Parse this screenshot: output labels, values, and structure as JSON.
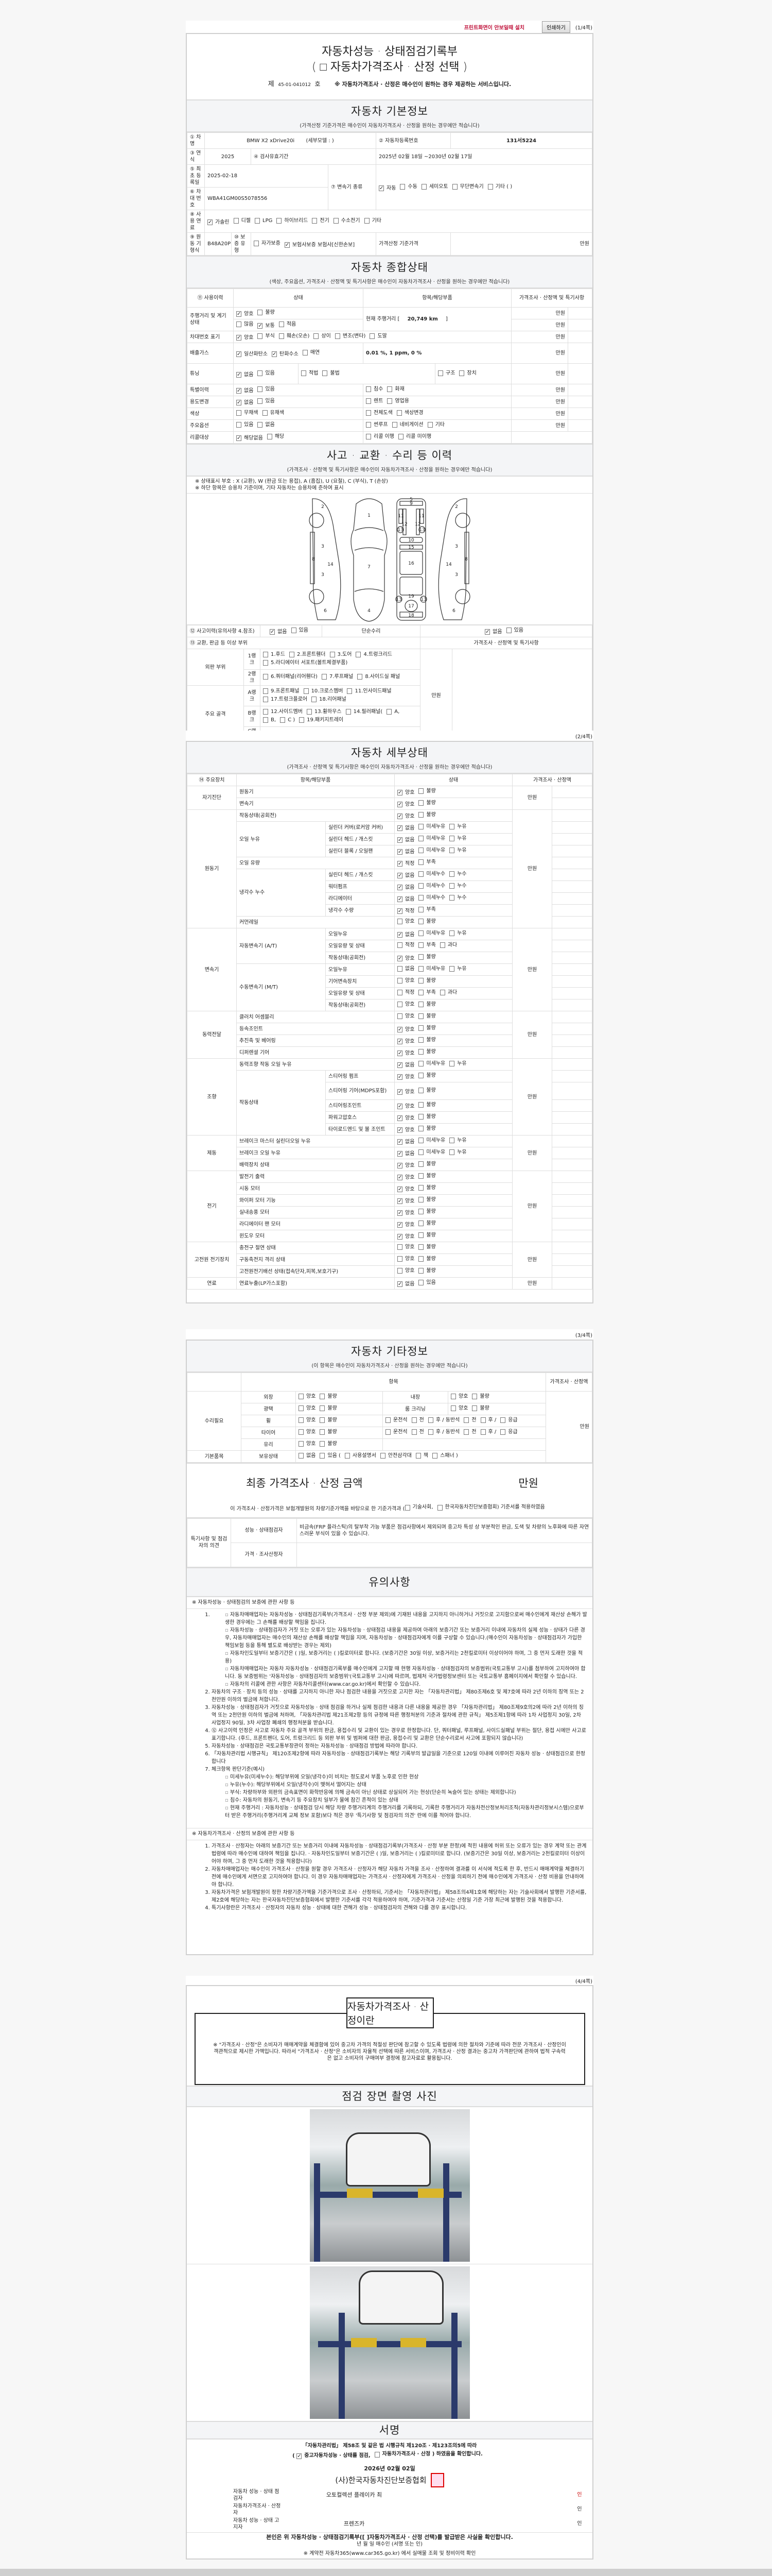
{
  "toolbar": {
    "install_link": "프린트화면이 안보일때 설치",
    "print_button": "인쇄하기",
    "page1": "(1/4쪽)",
    "page2": "(2/4쪽)",
    "page3": "(3/4쪽)",
    "page4": "(4/4쪽)"
  },
  "title": {
    "main": "자동차성능 · 상태점검기록부",
    "sub": "( □ 자동차가격조사 · 산정 선택 )",
    "no_prefix": "제",
    "no": "45-01-041012",
    "no_suffix": "호",
    "notice": "※ 자동차가격조사 · 산정은 매수인이 원하는 경우 제공하는 서비스입니다."
  },
  "basic": {
    "title": "자동차 기본정보",
    "sub": "(가격산정 기준가격은 매수인이 자동차가격조사 · 산정을 원하는 경우에만 적습니다)",
    "name_label": "① 차명",
    "name": "BMW X2 xDrive20i",
    "detail_model": "(세부모델 :                    )",
    "reg_label": "② 자동차등록번호",
    "reg": "131서5224",
    "year_label": "③ 연식",
    "year": "2025",
    "valid_label": "④ 검사유효기간",
    "valid": "2025년 02월 18일 ~2030년 02월 17일",
    "first_reg_label": "⑤ 최초 등록일",
    "first_reg": "2025-02-18",
    "trans_label": "⑦ 변속기 종류",
    "trans": {
      "options": [
        "자동",
        "수동",
        "세미오토",
        "무단변속기",
        "기타 (                )"
      ],
      "checked": [
        0
      ]
    },
    "vin_label": "⑥ 차대 번호",
    "vin": "WBA41GM00S5078556",
    "fuel_label": "⑧ 사용 연료",
    "fuel": {
      "options": [
        "가솔린",
        "디젤",
        "LPG",
        "하이브리드",
        "전기",
        "수소전기",
        "기타"
      ],
      "checked": [
        0
      ]
    },
    "engine_label": "⑨ 원동 기형식",
    "engine": "B48A20P",
    "warranty_label": "⑩ 보증 유형",
    "warranty": {
      "options": [
        "자가보증",
        "보험사보증 보험사[신한손보]"
      ],
      "checked": [
        1
      ]
    },
    "base_price_label": "가격산정 기준가격",
    "base_price_unit": "만원"
  },
  "overview": {
    "title": "자동차 종합상태",
    "sub": "(색상, 주요옵션, 가격조사 · 산정액 및 특기사항은 매수인이 자동차가격조사 · 산정을 원하는 경우에만 적습니다)",
    "h_history": "⑪ 사용이력",
    "h_state": "상태",
    "h_item": "항목/해당부품",
    "h_price": "가격조사 · 산정액 및 특기사항",
    "unit": "만원",
    "mileage_label": "주행거리 및 계기상태",
    "mileage_s1": {
      "options": [
        "양호",
        "불량"
      ],
      "checked": [
        0
      ]
    },
    "mileage_s2": {
      "options": [
        "많음",
        "보통",
        "적음"
      ],
      "checked": [
        1
      ]
    },
    "mileage_text_pre": "현재 주행거리 [",
    "mileage": "20,749 km",
    "mileage_text_post": "]",
    "vin_label": "차대번호 표기",
    "vin_s": {
      "options": [
        "양호",
        "부식",
        "훼손(오손)",
        "상이",
        "변조(변타)",
        "도말"
      ],
      "checked": [
        0
      ]
    },
    "emission_label": "배출가스",
    "emission_s": {
      "options": [
        "일산화탄소",
        "탄화수소",
        "매연"
      ],
      "checked": [
        0,
        1
      ]
    },
    "emission_values": "0.01 %,   1  ppm,   0  %",
    "tuning_label": "튜닝",
    "tuning_s": {
      "options": [
        "없음",
        "있음"
      ],
      "checked": [
        0
      ]
    },
    "tuning_i1": {
      "options": [
        "적법",
        "불법"
      ],
      "checked": []
    },
    "tuning_i2": {
      "options": [
        "구조",
        "장치"
      ],
      "checked": []
    },
    "special_label": "특별이력",
    "special_s": {
      "options": [
        "없음",
        "있음"
      ],
      "checked": [
        0
      ]
    },
    "special_i": {
      "options": [
        "침수",
        "화재"
      ],
      "checked": []
    },
    "usage_label": "용도변경",
    "usage_s": {
      "options": [
        "없음",
        "있음"
      ],
      "checked": [
        0
      ]
    },
    "usage_i": {
      "options": [
        "렌트",
        "영업용"
      ],
      "checked": []
    },
    "color_label": "색상",
    "color_s": {
      "options": [
        "무채색",
        "유채색"
      ],
      "checked": []
    },
    "color_i": {
      "options": [
        "전체도색",
        "색상변경"
      ],
      "checked": []
    },
    "option_label": "주요옵션",
    "option_s": {
      "options": [
        "있음",
        "없음"
      ],
      "checked": []
    },
    "option_i": {
      "options": [
        "썬루프",
        "네비게이션",
        "기타"
      ],
      "checked": []
    },
    "recall_label": "리콜대상",
    "recall_s": {
      "options": [
        "해당없음",
        "해당"
      ],
      "checked": [
        0
      ]
    },
    "recall_i": {
      "options": [
        "리콜 이행",
        "리콜 미이행"
      ],
      "checked": []
    }
  },
  "accident": {
    "title": "사고 · 교환 · 수리 등 이력",
    "sub": "(가격조사 · 산정액 및 특기사항은 매수인이 자동차가격조사 · 산정을 원하는 경우에만 적습니다)",
    "legend1": "※ 상태표시 부호 : X (교환), W (판금 또는 용접), A (흠집), U (요철), C (부식), T (손상)",
    "legend2": "※ 하단 항목은 승용차 기준이며, 기타 자동차는 승용차에 준하여 표시",
    "diagram_labels": [
      "1",
      "2",
      "3",
      "4",
      "5",
      "6",
      "7",
      "8",
      "9",
      "10",
      "11",
      "12",
      "13",
      "14",
      "15",
      "16",
      "17",
      "18",
      "19"
    ],
    "history_label": "⑫ 사고이력(유의사항 4.참조)",
    "history": {
      "options": [
        "없음",
        "있음"
      ],
      "checked": [
        0
      ]
    },
    "simple_label": "단순수리",
    "simple": {
      "options": [
        "없음",
        "있음"
      ],
      "checked": [
        0
      ]
    },
    "parts_label": "⑬ 교환, 판금 등 이상 부위",
    "price_label": "가격조사 · 산정액 및 특기사항",
    "unit": "만원",
    "outer_label": "외판 부위",
    "frame_label": "주요 골격",
    "rank1": "1랭크",
    "rank1_o": {
      "options": [
        "1.후드",
        "2.프론트휀더",
        "3.도어",
        "4.트렁크리드",
        "5.라디에이터 서포트(볼트체결부품)"
      ],
      "checked": []
    },
    "rank2": "2랭크",
    "rank2_o": {
      "options": [
        "6.쿼터패널(리어휀다)",
        "7.루프패널",
        "8.사이드실 패널"
      ],
      "checked": []
    },
    "rankA": "A랭크",
    "rankA_o": {
      "options": [
        "9.프론트패널",
        "10.크로스멤버",
        "11.인사이드패널",
        "17.트렁크플로어",
        "18.리어패널"
      ],
      "checked": []
    },
    "rankB": "B랭크",
    "rankB_o": {
      "options": [
        "12.사이드멤버",
        "13.휠하우스",
        "14.필러패널(",
        "A,",
        "B,",
        "C )",
        "19.패키지트레이"
      ],
      "checked": []
    },
    "rankC": "C랭크",
    "rankC_o": {
      "options": [
        "15.대쉬패널",
        "16.플로어패널"
      ],
      "checked": []
    }
  },
  "detail": {
    "title": "자동차 세부상태",
    "sub": "(가격조사 · 산정액 및 특기사항은 매수인이 자동차가격조사 · 산정을 원하는 경우에만 적습니다)",
    "h_device": "⑭ 주요장치",
    "h_item": "항목/해당부품",
    "h_state": "상태",
    "h_price": "가격조사 · 산정액",
    "unit": "만원",
    "rows": [
      {
        "g": "자기진단",
        "i": "원동기",
        "s": null,
        "o": [
          "양호",
          "불량"
        ],
        "c": [
          0
        ]
      },
      {
        "g": "자기진단",
        "i": "변속기",
        "s": null,
        "o": [
          "양호",
          "불량"
        ],
        "c": [
          0
        ]
      },
      {
        "g": "원동기",
        "i": "작동상태(공회전)",
        "s": null,
        "o": [
          "양호",
          "불량"
        ],
        "c": [
          0
        ]
      },
      {
        "g": "원동기",
        "i": "오일 누유",
        "s": "실린더 커버(로커암 커버)",
        "o": [
          "없음",
          "미세누유",
          "누유"
        ],
        "c": [
          0
        ]
      },
      {
        "g": "원동기",
        "i": "오일 누유",
        "s": "실린더 헤드 / 개스킷",
        "o": [
          "없음",
          "미세누유",
          "누유"
        ],
        "c": [
          0
        ]
      },
      {
        "g": "원동기",
        "i": "오일 누유",
        "s": "실린더 블록 / 오일팬",
        "o": [
          "없음",
          "미세누유",
          "누유"
        ],
        "c": [
          0
        ]
      },
      {
        "g": "원동기",
        "i": "오일 유량",
        "s": null,
        "o": [
          "적정",
          "부족"
        ],
        "c": [
          0
        ]
      },
      {
        "g": "원동기",
        "i": "냉각수 누수",
        "s": "실린더 헤드 / 개스킷",
        "o": [
          "없음",
          "미세누수",
          "누수"
        ],
        "c": [
          0
        ]
      },
      {
        "g": "원동기",
        "i": "냉각수 누수",
        "s": "워터펌프",
        "o": [
          "없음",
          "미세누수",
          "누수"
        ],
        "c": [
          0
        ]
      },
      {
        "g": "원동기",
        "i": "냉각수 누수",
        "s": "라디에이터",
        "o": [
          "없음",
          "미세누수",
          "누수"
        ],
        "c": [
          0
        ]
      },
      {
        "g": "원동기",
        "i": "냉각수 누수",
        "s": "냉각수 수량",
        "o": [
          "적정",
          "부족"
        ],
        "c": [
          0
        ]
      },
      {
        "g": "원동기",
        "i": "커먼레일",
        "s": null,
        "o": [
          "양호",
          "불량"
        ],
        "c": []
      },
      {
        "g": "변속기",
        "i": "자동변속기 (A/T)",
        "s": "오일누유",
        "o": [
          "없음",
          "미세누유",
          "누유"
        ],
        "c": [
          0
        ]
      },
      {
        "g": "변속기",
        "i": "자동변속기 (A/T)",
        "s": "오일유량 및 상태",
        "o": [
          "적정",
          "부족",
          "과다"
        ],
        "c": []
      },
      {
        "g": "변속기",
        "i": "자동변속기 (A/T)",
        "s": "작동상태(공회전)",
        "o": [
          "양호",
          "불량"
        ],
        "c": [
          0
        ]
      },
      {
        "g": "변속기",
        "i": "수동변속기 (M/T)",
        "s": "오일누유",
        "o": [
          "없음",
          "미세누유",
          "누유"
        ],
        "c": []
      },
      {
        "g": "변속기",
        "i": "수동변속기 (M/T)",
        "s": "기어변속장치",
        "o": [
          "양호",
          "불량"
        ],
        "c": []
      },
      {
        "g": "변속기",
        "i": "수동변속기 (M/T)",
        "s": "오일유량 및 상태",
        "o": [
          "적정",
          "부족",
          "과다"
        ],
        "c": []
      },
      {
        "g": "변속기",
        "i": "수동변속기 (M/T)",
        "s": "작동상태(공회전)",
        "o": [
          "양호",
          "불량"
        ],
        "c": []
      },
      {
        "g": "동력전달",
        "i": "클러치 어셈블리",
        "s": null,
        "o": [
          "양호",
          "불량"
        ],
        "c": []
      },
      {
        "g": "동력전달",
        "i": "등속조인트",
        "s": null,
        "o": [
          "양호",
          "불량"
        ],
        "c": [
          0
        ]
      },
      {
        "g": "동력전달",
        "i": "추진축 및 베어링",
        "s": null,
        "o": [
          "양호",
          "불량"
        ],
        "c": [
          0
        ]
      },
      {
        "g": "동력전달",
        "i": "디퍼렌셜 기어",
        "s": null,
        "o": [
          "양호",
          "불량"
        ],
        "c": [
          0
        ]
      },
      {
        "g": "조향",
        "i": "동력조향 작동 오일 누유",
        "s": null,
        "o": [
          "없음",
          "미세누유",
          "누유"
        ],
        "c": [
          0
        ]
      },
      {
        "g": "조향",
        "i": "작동상태",
        "s": "스티어링 펌프",
        "o": [
          "양호",
          "불량"
        ],
        "c": [
          0
        ]
      },
      {
        "g": "조향",
        "i": "작동상태",
        "s": "스티어링 기어(MDPS포함)",
        "o": [
          "양호",
          "불량"
        ],
        "c": [
          0
        ]
      },
      {
        "g": "조향",
        "i": "작동상태",
        "s": "스티어링조인트",
        "o": [
          "양호",
          "불량"
        ],
        "c": [
          0
        ]
      },
      {
        "g": "조향",
        "i": "작동상태",
        "s": "파워고압호스",
        "o": [
          "양호",
          "불량"
        ],
        "c": [
          0
        ]
      },
      {
        "g": "조향",
        "i": "작동상태",
        "s": "타이로드엔드 및 볼 조인트",
        "o": [
          "양호",
          "불량"
        ],
        "c": [
          0
        ]
      },
      {
        "g": "제동",
        "i": "브레이크 마스터 실린더오일 누유",
        "s": null,
        "o": [
          "없음",
          "미세누유",
          "누유"
        ],
        "c": [
          0
        ]
      },
      {
        "g": "제동",
        "i": "브레이크 오일 누유",
        "s": null,
        "o": [
          "없음",
          "미세누유",
          "누유"
        ],
        "c": [
          0
        ]
      },
      {
        "g": "제동",
        "i": "배력장치 상태",
        "s": null,
        "o": [
          "양호",
          "불량"
        ],
        "c": [
          0
        ]
      },
      {
        "g": "전기",
        "i": "발전기 출력",
        "s": null,
        "o": [
          "양호",
          "불량"
        ],
        "c": [
          0
        ]
      },
      {
        "g": "전기",
        "i": "시동 모터",
        "s": null,
        "o": [
          "양호",
          "불량"
        ],
        "c": [
          0
        ]
      },
      {
        "g": "전기",
        "i": "와이퍼 모터 기능",
        "s": null,
        "o": [
          "양호",
          "불량"
        ],
        "c": [
          0
        ]
      },
      {
        "g": "전기",
        "i": "실내송풍 모터",
        "s": null,
        "o": [
          "양호",
          "불량"
        ],
        "c": [
          0
        ]
      },
      {
        "g": "전기",
        "i": "라디에이터 팬 모터",
        "s": null,
        "o": [
          "양호",
          "불량"
        ],
        "c": [
          0
        ]
      },
      {
        "g": "전기",
        "i": "윈도우 모터",
        "s": null,
        "o": [
          "양호",
          "불량"
        ],
        "c": [
          0
        ]
      },
      {
        "g": "고전원 전기장치",
        "i": "충전구 절연 상태",
        "s": null,
        "o": [
          "양호",
          "불량"
        ],
        "c": []
      },
      {
        "g": "고전원 전기장치",
        "i": "구동축전지 격리 상태",
        "s": null,
        "o": [
          "양호",
          "불량"
        ],
        "c": []
      },
      {
        "g": "고전원 전기장치",
        "i": "고전원전기배선 상태(접속단자,피복,보호기구)",
        "s": null,
        "o": [
          "양호",
          "불량"
        ],
        "c": []
      },
      {
        "g": "연료",
        "i": "연료누출(LP가스포함)",
        "s": null,
        "o": [
          "없음",
          "있음"
        ],
        "c": [
          0
        ]
      }
    ]
  },
  "other": {
    "title": "자동차 기타정보",
    "sub": "(이 항목은 매수인이 자동차가격조사 · 산정을 원하는 경우에만 적습니다)",
    "h_item": "항목",
    "h_price": "가격조사 · 산정액",
    "unit": "만원",
    "repair_label": "수리필요",
    "basic_label": "기본품목",
    "exterior": "외장",
    "interior": "내장",
    "gloss": "광택",
    "room": "룸 크리닝",
    "wheel": "휠",
    "tire": "타이어",
    "glass": "유리",
    "owned": "보유상태",
    "gb": {
      "options": [
        "양호",
        "불량"
      ],
      "checked": []
    },
    "seats": {
      "options": [
        "운전석",
        "전",
        "후 / 동반석",
        "전",
        "후 /",
        "응급"
      ],
      "checked": []
    },
    "owned_o": {
      "options": [
        "없음",
        "있음 (",
        "사용설명서",
        "안전삼각대",
        "잭",
        "스패너 )"
      ],
      "checked": []
    },
    "final_label": "최종 가격조사 · 산정 금액",
    "final_unit": "만원",
    "basis_pre": "이 가격조사 · 산정가격은 보험개발원의 차량기준가액을 바탕으로 한 기준가격과 (",
    "basis_o": {
      "options": [
        "기술사회,",
        "한국자동차진단보증협회) 기준서를 적용하였음"
      ],
      "checked": []
    },
    "opinion_label": "특기사항 및 점검자의 의견",
    "inspector_label": "성능 · 상태점검자",
    "inspector_opinion": "비금속(FRP 플라스틱)의 탈부착 가능 부품은 점검사항에서 제외되며 중고차 특성 상 부분적인 판금, 도색 및 차량의 노후화에 따른 자연스러운 부식이 있을 수 있습니다.",
    "appraiser_label": "가격 · 조사산정자"
  },
  "notes": {
    "title": "유의사항",
    "a_head": "※ 자동차성능 · 상태점검의 보증에 관한 사항 등",
    "a1": [
      "자동차매매업자는 자동차성능 · 상태점검기록부(가격조사 · 산정 부분 제외)에 기재된 내용을 고지하지 아니하거나 거짓으로 고지함으로써 매수인에게 재산상 손해가 발생한 경우에는 그 손해를 배상할 책임을 집니다.",
      "자동차성능 · 상태점검자가 거짓 또는 오류가 있는 자동차성능 · 상태점검 내용을 제공하여 아래의 보증기간 또는 보증거리 이내에 자동차의 실제 성능 · 상태가 다른 경우, 자동차매매업자는 매수인의 재산상 손해를 배상할 책임을 지며, 자동차성능 · 상태점검자에게 이를 구상할 수 있습니다.(매수인이 자동차성능 · 상태점검자가 가입한 책임보험 등을 통해 별도로 배상받는 경우는 제외)",
      "자동차인도일부터 보증기간은 (      )일, 보증거리는 (      )킬로미터로 합니다. (보증기간은 30일 이상, 보증거리는 2천킬로미터 이상이어야 하며, 그 중 먼저 도래한 것을 적용)",
      "자동차매매업자는 자동차 자동차성능 · 상태점검기록부를 매수인에게 고지할 때 현행 자동차성능 · 상태점검자의 보증범위(국토교통부 고시)를 첨부하여 고지하여야 합니다. 동 보증범위는 '자동차성능 · 상태점검자의 보증범위'(국토교통부 고시)에 따르며, 법제처 국가법령정보센터 또는 국토교통부 홈페이지에서 확인할 수 있습니다.",
      "자동차의 리콜에 관한 사항은 자동차리콜센터(www.car.go.kr)에서 확인할 수 있습니다."
    ],
    "a2": "자동차의 구조 · 장치 등의 성능 · 상태를 고지하지 아니한 자나 점검한 내용을 거짓으로 고지한 자는 「자동차관리법」 제80조제6호 및 제7호에 따라 2년 이하의 징역 또는 2천만원 이하의 벌금에 처합니다.",
    "a3": "자동차성능 · 상태점검자가 거짓으로 자동차성능 · 상태 점검을 하거나 실제 점검한 내용과 다른 내용을 제공한 경우 「자동차관리법」 제80조제9호의2에 따라 2년 이하의 징역 또는 2천만원 이하의 벌금에 처하며, 「자동차관리법 제21조제2항 등의 규정에 따른 행정처분의 기준과 절차에 관한 규칙」 제5조제1항에 따라 1차 사업정지 30일, 2차 사업정지 90일, 3차 사업장 폐쇄의 행정처분을 받습니다.",
    "a4": "⑫ 사고이력 인정은 사고로 자동차 주요 골격 부위의 판금, 용접수리 및 교환이 있는 경우로 한정합니다. 단, 쿼터패널, 루프패널, 사이드실패널 부위는 절단, 용접 시에만 사고로 표기합니다. (후드, 프론트펜더, 도어, 트렁크리드 등 외판 부위 및 범퍼에 대한 판금, 용접수리 및 교환은 단순수리로서 사고에 포함되지 않습니다)",
    "a5": "자동차성능 · 상태점검은 국토교통부장관이 정하는 자동차성능 · 상태점검 방법에 따라야 합니다.",
    "a6": "「자동차관리법 시행규칙」 제120조제2항에 따라 자동차성능 · 상태점검기록부는 해당 기록부의 발급일을 기준으로 120일 이내에 이루어진 자동차 성능 · 상태점검으로 한정합니다",
    "a7": "체크항목 판단기준(예시)",
    "a7_items": [
      "미세누유(미세누수): 해당부위에 오일(냉각수)이 비치는 정도로서 부품 노후로 인한 현상",
      "누유(누수): 해당부위에서 오일(냉각수)이 맺혀서 떨어지는 상태",
      "부식: 차량하부와 외판의 금속표면이 화학반응에 의해 금속이 아닌 상태로 상실되어 가는 현상(단순히 녹슬어 있는 상태는 제외합니다)",
      "침수: 자동차의 원동기, 변속기 등 주요장치 일부가 물에 잠긴 흔적이 있는 상태",
      "현재 주행거리 : 자동차성능 · 상태점검 당시 해당 차량 주행거리계의 주행거리를 기록하되, 기록한 주행거리가 자동차전산정보처리조직(자동차관리정보시스템)으로부터 받은 주행거리(주행거리계 교체 정보 포함)보다 적은 경우 '특기사항 및 점검자의 의견' 란에 이를 적어야 합니다."
    ],
    "b_head": "※ 자동차가격조사 · 산정의 보증에 관한 사항 등",
    "b": [
      "가격조사 · 산정자는 아래의 보증기간 또는 보증거리 이내에 자동차성능 · 상태점검기록부(가격조사 · 산정 부분 한정)에 적힌 내용에 허위 또는 오류가 있는 경우 계약 또는 관계법령에 따라 매수인에 대하여 책임을 집니다.  · 자동차인도일부터 보증기간은 (      )일, 보증거리는 (      )킬로미터로 합니다. (보증기간은 30일 이상, 보증거리는 2천킬로미터 이상이어야 하며, 그 중 먼저 도래한 것을 적용합니다)",
      "자동차매매업자는 매수인이 가격조사 · 산정을 원할 경우 가격조사 · 산정자가 해당 자동차 가격을 조사 · 산정하여 결과를 이 서식에 적도록 한 후, 반드시 매매계약을 체결하기 전에 매수인에게 서면으로 고지하여야 합니다. 이 경우 자동차매매업자는 가격조사 · 산정자에게 가격조사 · 산정을 의뢰하기 전에 매수인에게 가격조사 · 산정 비용을 안내하여야 합니다.",
      "자동차가격은 보험개발원이 정한 차량기준가액을 기준가격으로 조사 · 산정하되, 기준서는 「자동차관리법」 제58조의4제1호에 해당하는 자는 기술사회에서 발행한 기준서를, 제2호에 해당하는 자는 한국자동차진단보증협회에서 발행한 기준서를 각각 적용하여야 하며, 기준가격과 기준서는 산정일 기준 가장 최근에 발행된 것을 적용합니다.",
      "특기사항란은 가격조사 · 산정자의 자동차 성능 · 상태에 대한 견해가 성능 · 상태점검자의 견해와 다를 경우 표시합니다."
    ]
  },
  "appraisal": {
    "title": "자동차가격조사 · 산정이란",
    "body": "※ \"가격조사 · 산정\"은 소비자가 매매계약을 체결함에 있어 중고차 가격의 적절성 판단에 참고할 수 있도록 법령에 의한 절차와 기준에 따라 전문 가격조사 · 산정인이 객관적으로 제시한 가액입니다. 따라서 \"가격조사 · 산정\"은 소비자의 자율적 선택에 따른 서비스이며, 가격조사 · 산정 결과는 중고차 가격판단에 관하여 법적 구속력은 없고 소비자의 구매여부 결정에 참고자료로 활용됩니다."
  },
  "photos": {
    "title": "점검 장면 촬영 사진",
    "plate": "131서5224"
  },
  "sign": {
    "title": "서명",
    "law": "「자동차관리법」 제58조 및 같은 법 시행규칙 제120조 · 제123조의5에 따라",
    "confirm": {
      "options": [
        "중고자동차성능 · 상태를 점검,",
        "자동차가격조사 · 산정 ) 하였음을 확인합니다."
      ],
      "checked": [
        0
      ]
    },
    "date": "2026년 02월  02일",
    "org": "(사)한국자동차진단보증협회",
    "seal_text": "인",
    "inspector_label": "자동차 성능 · 상태 점검자",
    "inspector": "오토컬렉션 플레이카 최",
    "appraiser_label": "자동차가격조사 · 산정자",
    "notifier_label": "자동차 성능 · 상태 고지자",
    "notifier": "프렌즈카",
    "seal": "인",
    "receipt": "본인은 위 자동차성능 · 상태점검기록부([   ]자동차가격조사 · 산정 선택)를 발급받은 사실을 확인합니다.",
    "receipt_line": "년     월     일      매수인                    (서명 또는 인)",
    "car365": "※ 계약전 자동차365(www.car365.go.kr) 에서 실매물 조회 및 정비이력 확인"
  }
}
